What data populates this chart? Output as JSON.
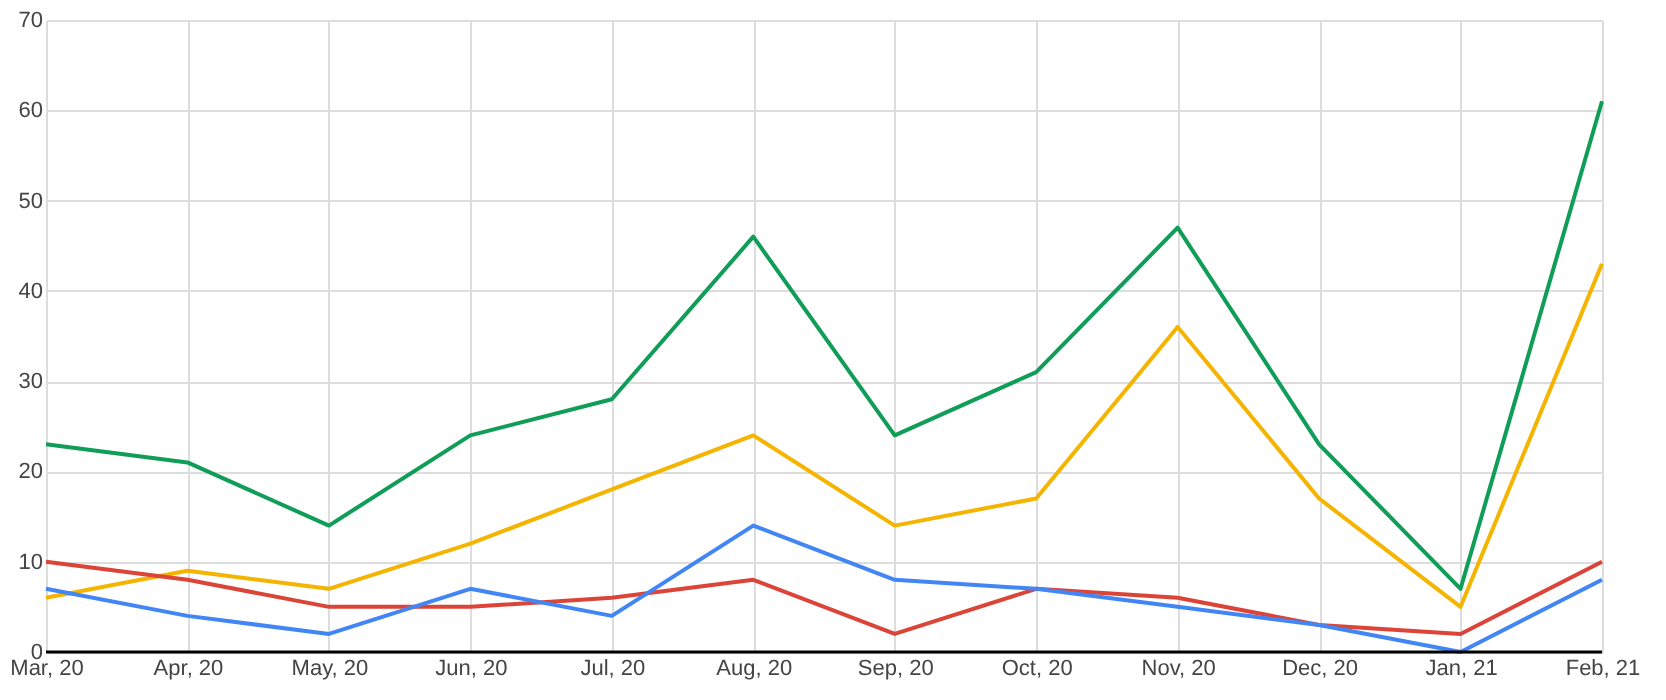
{
  "chart_data": {
    "type": "line",
    "categories": [
      "Mar, 20",
      "Apr, 20",
      "May, 20",
      "Jun, 20",
      "Jul, 20",
      "Aug, 20",
      "Sep, 20",
      "Oct, 20",
      "Nov, 20",
      "Dec, 20",
      "Jan, 21",
      "Feb, 21"
    ],
    "series": [
      {
        "color": "#0f9d58",
        "values": [
          23,
          21,
          14,
          24,
          28,
          46,
          24,
          31,
          47,
          23,
          7,
          61
        ]
      },
      {
        "color": "#f4b400",
        "values": [
          6,
          9,
          7,
          12,
          18,
          24,
          14,
          17,
          36,
          17,
          5,
          43
        ]
      },
      {
        "color": "#db4437",
        "values": [
          10,
          8,
          5,
          5,
          6,
          8,
          2,
          7,
          6,
          3,
          2,
          10
        ]
      },
      {
        "color": "#4285f4",
        "values": [
          7,
          4,
          2,
          7,
          4,
          14,
          8,
          7,
          5,
          3,
          0,
          8
        ]
      }
    ],
    "ylim": [
      0,
      70
    ],
    "yticks": [
      0,
      10,
      20,
      30,
      40,
      50,
      60,
      70
    ],
    "grid": true,
    "legend": false,
    "marker": "none",
    "line_style": "solid"
  }
}
